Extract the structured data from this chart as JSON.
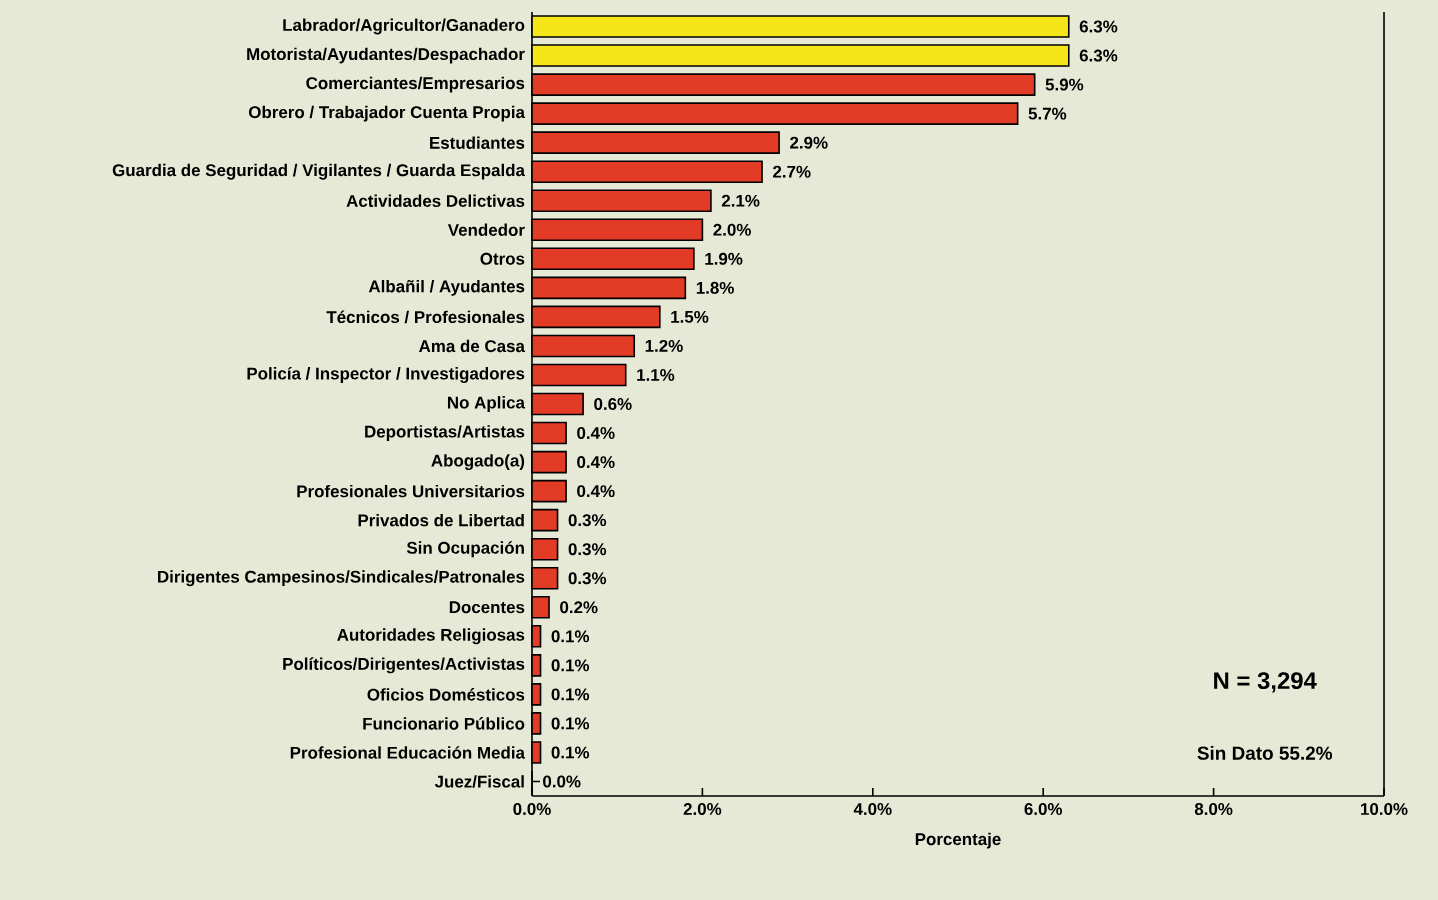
{
  "chart_data": {
    "type": "bar",
    "orientation": "horizontal",
    "xlabel": "Porcentaje",
    "categories": [
      "Labrador/Agricultor/Ganadero",
      "Motorista/Ayudantes/Despachador",
      "Comerciantes/Empresarios",
      "Obrero / Trabajador Cuenta Propia",
      "Estudiantes",
      "Guardia de Seguridad / Vigilantes / Guarda Espalda",
      "Actividades Delictivas",
      "Vendedor",
      "Otros",
      "Albañil / Ayudantes",
      "Técnicos / Profesionales",
      "Ama de Casa",
      "Policía / Inspector / Investigadores",
      "No Aplica",
      "Deportistas/Artistas",
      "Abogado(a)",
      "Profesionales Universitarios",
      "Privados de Libertad",
      "Sin Ocupación",
      "Dirigentes Campesinos/Sindicales/Patronales",
      "Docentes",
      "Autoridades Religiosas",
      "Políticos/Dirigentes/Activistas",
      "Oficios Domésticos",
      "Funcionario Público",
      "Profesional Educación Media",
      "Juez/Fiscal"
    ],
    "values": [
      6.3,
      6.3,
      5.9,
      5.7,
      2.9,
      2.7,
      2.1,
      2.0,
      1.9,
      1.8,
      1.5,
      1.2,
      1.1,
      0.6,
      0.4,
      0.4,
      0.4,
      0.3,
      0.3,
      0.3,
      0.2,
      0.1,
      0.1,
      0.1,
      0.1,
      0.1,
      0.0
    ],
    "value_labels": [
      "6.3%",
      "6.3%",
      "5.9%",
      "5.7%",
      "2.9%",
      "2.7%",
      "2.1%",
      "2.0%",
      "1.9%",
      "1.8%",
      "1.5%",
      "1.2%",
      "1.1%",
      "0.6%",
      "0.4%",
      "0.4%",
      "0.4%",
      "0.3%",
      "0.3%",
      "0.3%",
      "0.2%",
      "0.1%",
      "0.1%",
      "0.1%",
      "0.1%",
      "0.1%",
      "0.0%"
    ],
    "colors": [
      "#f5e61a",
      "#f5e61a",
      "#e23b26",
      "#e23b26",
      "#e23b26",
      "#e23b26",
      "#e23b26",
      "#e23b26",
      "#e23b26",
      "#e23b26",
      "#e23b26",
      "#e23b26",
      "#e23b26",
      "#e23b26",
      "#e23b26",
      "#e23b26",
      "#e23b26",
      "#e23b26",
      "#e23b26",
      "#e23b26",
      "#e23b26",
      "#e23b26",
      "#e23b26",
      "#e23b26",
      "#e23b26",
      "#e23b26",
      "#e23b26"
    ],
    "xlim": [
      0,
      10
    ],
    "xticks": [
      {
        "value": 0,
        "label": "0.0%"
      },
      {
        "value": 2,
        "label": "2.0%"
      },
      {
        "value": 4,
        "label": "4.0%"
      },
      {
        "value": 6,
        "label": "6.0%"
      },
      {
        "value": 8,
        "label": "8.0%"
      },
      {
        "value": 10,
        "label": "10.0%"
      }
    ],
    "annotations": [
      "N = 3,294",
      "Sin Dato 55.2%"
    ]
  }
}
